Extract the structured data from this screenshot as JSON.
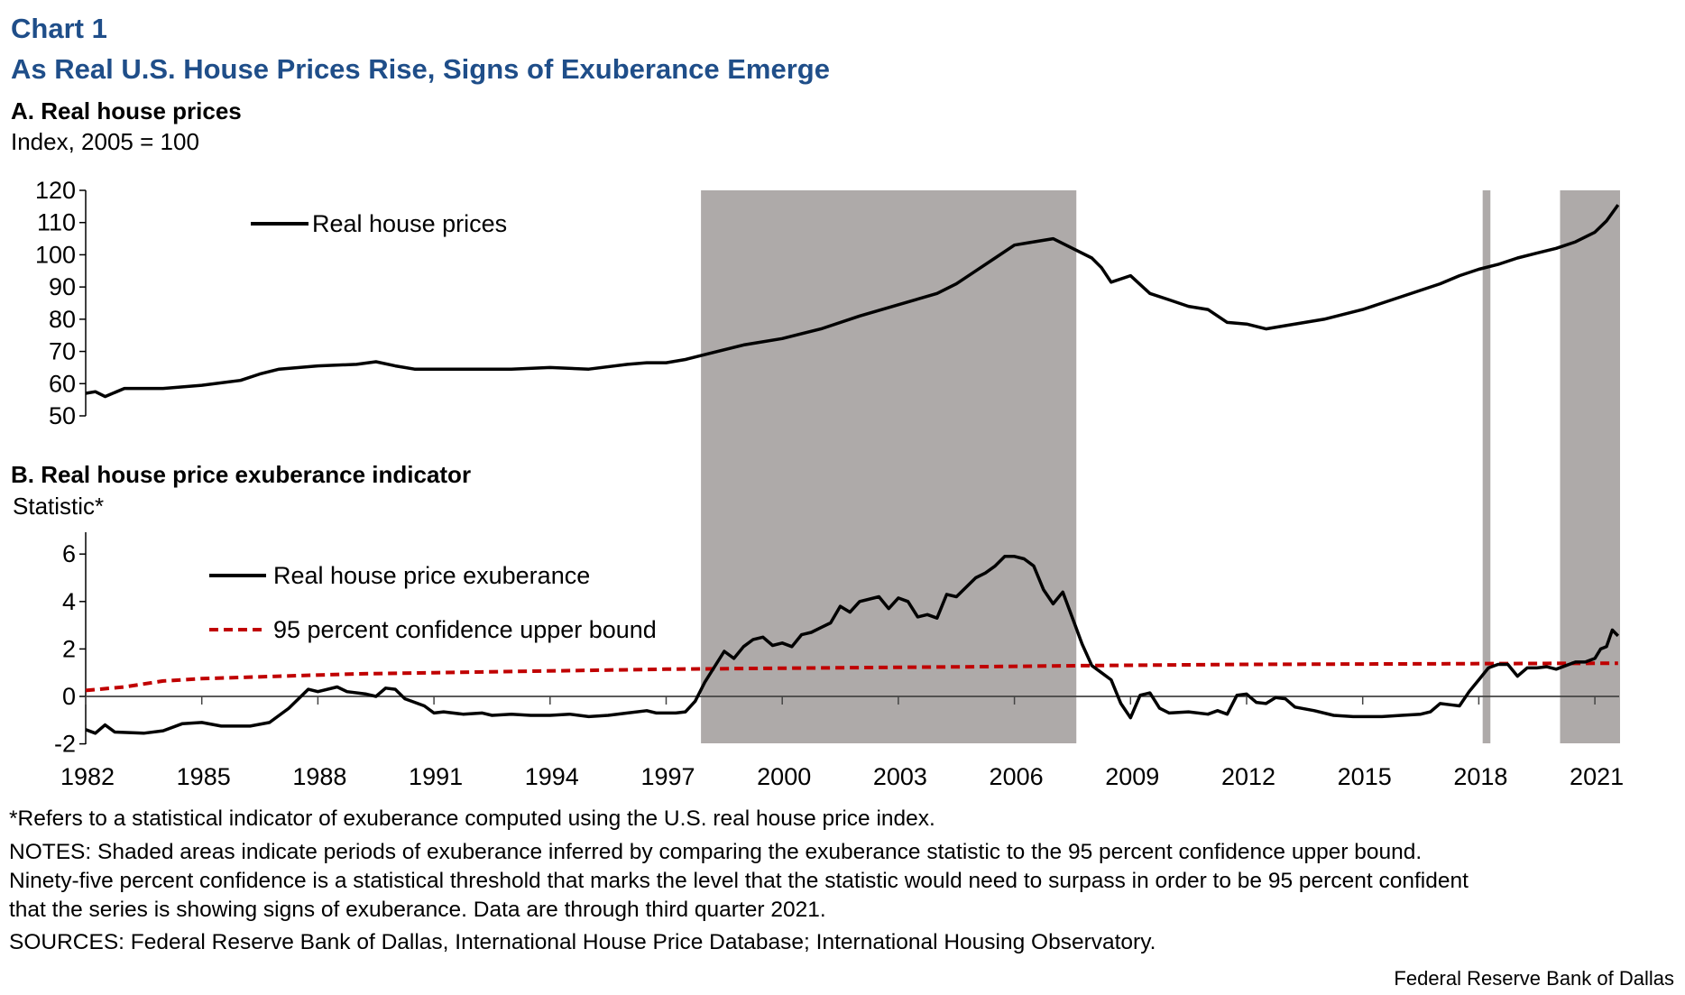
{
  "header": {
    "chart_number": "Chart 1",
    "title": "As Real U.S. House Prices Rise, Signs of Exuberance Emerge"
  },
  "colors": {
    "title": "#1f4e89",
    "shading": "#aeaaa9",
    "line": "#000000",
    "bound": "#c00000"
  },
  "chart_data": [
    {
      "type": "line",
      "title": "A. Real house prices",
      "ylabel": "Index, 2005 = 100",
      "ylim": [
        50,
        120
      ],
      "yticks": [
        "120",
        "110",
        "100",
        "90",
        "80",
        "70",
        "60",
        "50"
      ],
      "legend_placement": "top-left",
      "shaded_periods": [
        [
          1997.9,
          2007.6
        ],
        [
          2018.1,
          2018.3
        ],
        [
          2020.1,
          2021.65
        ]
      ],
      "series": [
        {
          "name": "Real house prices",
          "x": [
            1982,
            1982.25,
            1982.5,
            1983,
            1984,
            1985,
            1986,
            1986.5,
            1987,
            1988,
            1989,
            1989.5,
            1990,
            1990.5,
            1991,
            1992,
            1993,
            1994,
            1995,
            1996,
            1996.5,
            1997,
            1997.5,
            1998,
            1999,
            2000,
            2001,
            2002,
            2003,
            2004,
            2004.5,
            2005,
            2005.5,
            2006,
            2006.5,
            2007,
            2007.5,
            2008,
            2008.25,
            2008.5,
            2009,
            2009.5,
            2010,
            2010.5,
            2011,
            2011.5,
            2012,
            2012.5,
            2013,
            2014,
            2015,
            2016,
            2017,
            2017.5,
            2018,
            2018.5,
            2019,
            2019.5,
            2020,
            2020.5,
            2021,
            2021.3,
            2021.6
          ],
          "y": [
            57,
            57.5,
            56,
            58.5,
            58.5,
            59.5,
            61,
            63,
            64.5,
            65.5,
            66,
            66.8,
            65.5,
            64.5,
            64.5,
            64.5,
            64.5,
            65,
            64.5,
            66,
            66.5,
            66.5,
            67.5,
            69,
            72,
            74,
            77,
            81,
            84.5,
            88,
            91,
            95,
            99,
            103,
            104,
            105,
            102,
            99,
            96,
            91.5,
            93.5,
            88,
            86,
            84,
            83,
            79,
            78.5,
            77,
            78,
            80,
            83,
            87,
            91,
            93.5,
            95.5,
            97,
            99,
            100.5,
            102,
            104,
            107,
            110.5,
            115.5
          ]
        }
      ]
    },
    {
      "type": "line",
      "title": "B. Real house price exuberance indicator",
      "ylabel": "Statistic*",
      "ylim": [
        -2,
        7
      ],
      "yticks": [
        "6",
        "4",
        "2",
        "0",
        "-2"
      ],
      "xticks": [
        "1982",
        "1985",
        "1988",
        "1991",
        "1994",
        "1997",
        "2000",
        "2003",
        "2006",
        "2009",
        "2012",
        "2015",
        "2018",
        "2021"
      ],
      "legend_placement": "top-left",
      "shaded_periods": [
        [
          1997.9,
          2007.6
        ],
        [
          2018.1,
          2018.3
        ],
        [
          2020.1,
          2021.65
        ]
      ],
      "series": [
        {
          "name": "Real house price exuberance",
          "x": [
            1982,
            1982.25,
            1982.5,
            1982.75,
            1983.5,
            1984,
            1984.5,
            1985,
            1985.5,
            1986.25,
            1986.75,
            1987.25,
            1987.75,
            1988,
            1988.5,
            1988.75,
            1989.25,
            1989.5,
            1989.75,
            1990,
            1990.25,
            1990.75,
            1991,
            1991.25,
            1991.75,
            1992.25,
            1992.5,
            1993,
            1993.5,
            1994,
            1994.5,
            1995,
            1995.5,
            1996,
            1996.5,
            1996.75,
            1997.25,
            1997.5,
            1997.75,
            1998,
            1998.5,
            1998.75,
            1999,
            1999.25,
            1999.5,
            1999.75,
            2000,
            2000.25,
            2000.5,
            2000.75,
            2001,
            2001.25,
            2001.5,
            2001.75,
            2002,
            2002.5,
            2002.75,
            2003,
            2003.25,
            2003.5,
            2003.75,
            2004,
            2004.25,
            2004.5,
            2004.75,
            2005,
            2005.25,
            2005.5,
            2005.75,
            2006,
            2006.25,
            2006.5,
            2006.75,
            2007,
            2007.25,
            2007.5,
            2007.75,
            2008,
            2008.25,
            2008.5,
            2008.75,
            2009,
            2009.25,
            2009.5,
            2009.75,
            2010,
            2010.5,
            2011,
            2011.25,
            2011.5,
            2011.75,
            2012,
            2012.25,
            2012.5,
            2012.75,
            2013,
            2013.25,
            2013.75,
            2014.25,
            2014.75,
            2015.5,
            2016,
            2016.5,
            2016.75,
            2017,
            2017.25,
            2017.5,
            2017.75,
            2018,
            2018.25,
            2018.5,
            2018.75,
            2019,
            2019.25,
            2019.5,
            2019.75,
            2020,
            2020.25,
            2020.5,
            2020.75,
            2021,
            2021.15,
            2021.3,
            2021.45,
            2021.6
          ],
          "y": [
            -1.4,
            -1.55,
            -1.2,
            -1.5,
            -1.55,
            -1.45,
            -1.15,
            -1.1,
            -1.25,
            -1.25,
            -1.1,
            -0.5,
            0.3,
            0.2,
            0.4,
            0.2,
            0.1,
            0.0,
            0.35,
            0.3,
            -0.1,
            -0.4,
            -0.7,
            -0.65,
            -0.75,
            -0.7,
            -0.8,
            -0.75,
            -0.8,
            -0.8,
            -0.75,
            -0.85,
            -0.8,
            -0.7,
            -0.6,
            -0.7,
            -0.7,
            -0.65,
            -0.2,
            0.6,
            1.9,
            1.6,
            2.1,
            2.4,
            2.5,
            2.15,
            2.25,
            2.1,
            2.6,
            2.7,
            2.9,
            3.1,
            3.8,
            3.55,
            4.0,
            4.2,
            3.7,
            4.15,
            4.0,
            3.35,
            3.45,
            3.3,
            4.3,
            4.2,
            4.6,
            5.0,
            5.2,
            5.5,
            5.9,
            5.9,
            5.8,
            5.5,
            4.5,
            3.9,
            4.4,
            3.3,
            2.2,
            1.3,
            1.0,
            0.7,
            -0.3,
            -0.9,
            0.05,
            0.15,
            -0.5,
            -0.7,
            -0.65,
            -0.75,
            -0.6,
            -0.75,
            0.05,
            0.1,
            -0.25,
            -0.3,
            -0.05,
            -0.1,
            -0.45,
            -0.6,
            -0.8,
            -0.85,
            -0.85,
            -0.8,
            -0.75,
            -0.65,
            -0.3,
            -0.35,
            -0.4,
            0.2,
            0.7,
            1.2,
            1.35,
            1.35,
            0.85,
            1.2,
            1.2,
            1.25,
            1.15,
            1.3,
            1.45,
            1.45,
            1.6,
            2.0,
            2.1,
            2.8,
            2.55
          ]
        },
        {
          "name": "95 percent confidence upper bound",
          "x": [
            1982,
            1983,
            1984,
            1985,
            1987,
            1989,
            1991,
            1993,
            1995,
            1997,
            2001,
            2005,
            2008,
            2012,
            2021.6
          ],
          "y": [
            0.25,
            0.4,
            0.65,
            0.75,
            0.85,
            0.95,
            1.0,
            1.05,
            1.1,
            1.15,
            1.2,
            1.25,
            1.3,
            1.35,
            1.4
          ]
        }
      ]
    }
  ],
  "notes": {
    "footnote": "*Refers to a statistical indicator of exuberance computed using the U.S. real house price index.",
    "notes_line1": "NOTES: Shaded areas indicate periods of exuberance inferred by comparing the exuberance statistic to the 95 percent confidence upper bound.",
    "notes_line2": "Ninety-five percent confidence is a statistical threshold that marks the level that the statistic would need to surpass in order to be 95 percent confident",
    "notes_line3": "that the series is showing signs of exuberance. Data are through third quarter 2021.",
    "sources": "SOURCES: Federal Reserve Bank of Dallas, International House Price Database; International Housing Observatory.",
    "credit": "Federal Reserve Bank of Dallas"
  }
}
